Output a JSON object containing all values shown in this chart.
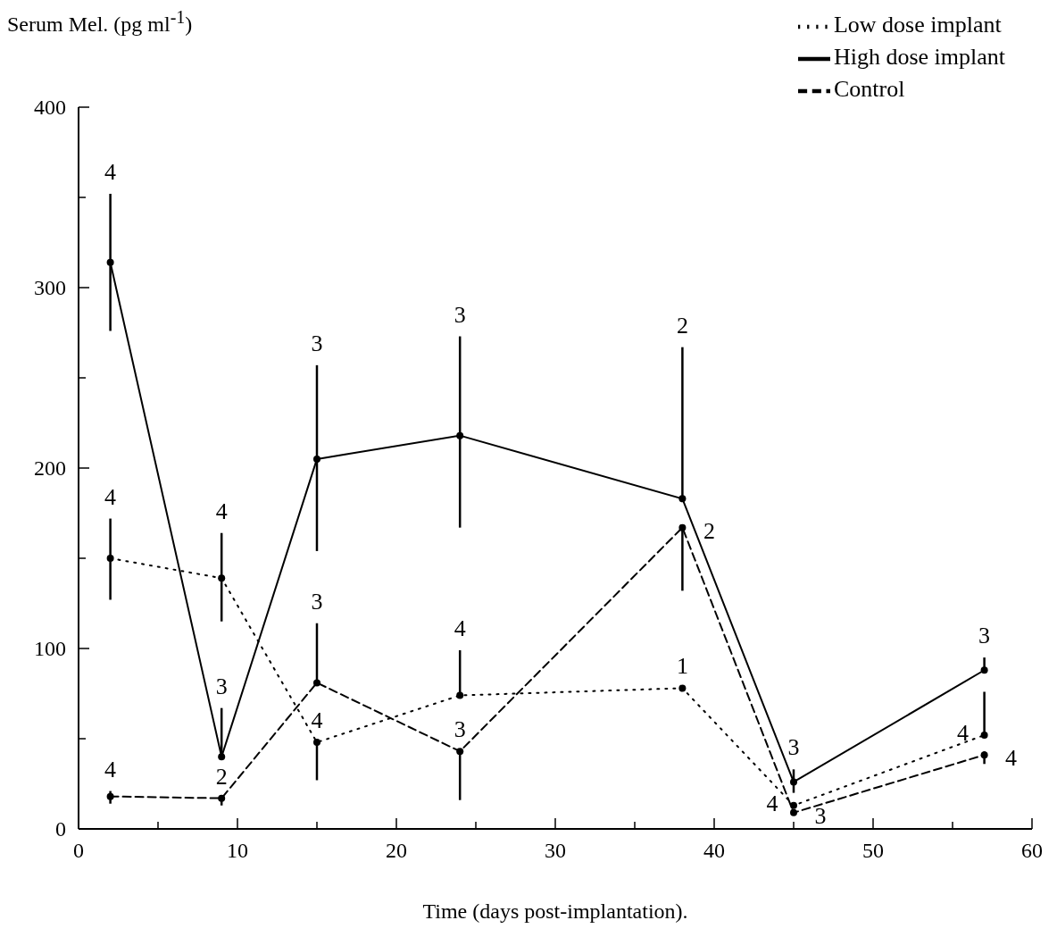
{
  "chart_data": {
    "type": "line",
    "ylabel": "Serum Mel. (pg ml$^{-1}$)",
    "xlabel": "Time (days post-implantation).",
    "xlim": [
      0,
      60
    ],
    "xticks": [
      0,
      {
        "value": 5,
        "label": null
      },
      10,
      {
        "value": 15,
        "label": null
      },
      20,
      {
        "value": 25,
        "label": null
      },
      30,
      {
        "value": 35,
        "label": null
      },
      40,
      {
        "value": 45,
        "label": null
      },
      50,
      {
        "value": 55,
        "label": null
      },
      60
    ],
    "ylim": [
      0,
      400
    ],
    "yticks": [
      0,
      {
        "value": 50,
        "label": null
      },
      100,
      {
        "value": 150,
        "label": null
      },
      200,
      {
        "value": 250,
        "label": null
      },
      300,
      {
        "value": 350,
        "label": null
      },
      400
    ],
    "grid": false,
    "legend": "top right",
    "marker": "circle",
    "x": [
      2,
      9,
      15,
      24,
      38,
      45,
      57
    ],
    "series": [
      {
        "name": "Low dose implant",
        "color": "#000000",
        "line_style": "dotted",
        "values": [
          150,
          139,
          48,
          74,
          78,
          13,
          52
        ],
        "errors": [
          [
            127,
            172
          ],
          [
            115,
            164
          ],
          [
            27,
            48
          ],
          [
            74,
            99
          ],
          null,
          null,
          [
            52,
            76
          ]
        ]
      },
      {
        "name": "High dose implant",
        "color": "#000000",
        "line_style": "solid",
        "values": [
          314,
          40,
          205,
          218,
          183,
          26,
          88
        ],
        "errors": [
          [
            276,
            352
          ],
          [
            40,
            67
          ],
          [
            154,
            257
          ],
          [
            167,
            273
          ],
          [
            183,
            267
          ],
          [
            20,
            33
          ],
          [
            88,
            95
          ]
        ]
      },
      {
        "name": "Control",
        "color": "#000000",
        "line_style": "dashed",
        "values": [
          18,
          17,
          81,
          43,
          167,
          9,
          41
        ],
        "errors": [
          [
            14,
            21
          ],
          [
            13,
            17
          ],
          [
            81,
            114
          ],
          [
            16,
            43
          ],
          [
            132,
            167
          ],
          null,
          [
            36,
            43
          ]
        ]
      }
    ],
    "annotations": [
      "4",
      "4",
      "4",
      "4",
      "1",
      "4",
      "4",
      "4",
      "3",
      "3",
      "3",
      "2",
      "3",
      "3",
      "4",
      "2",
      "3",
      "3",
      "2",
      "3",
      "4"
    ]
  }
}
